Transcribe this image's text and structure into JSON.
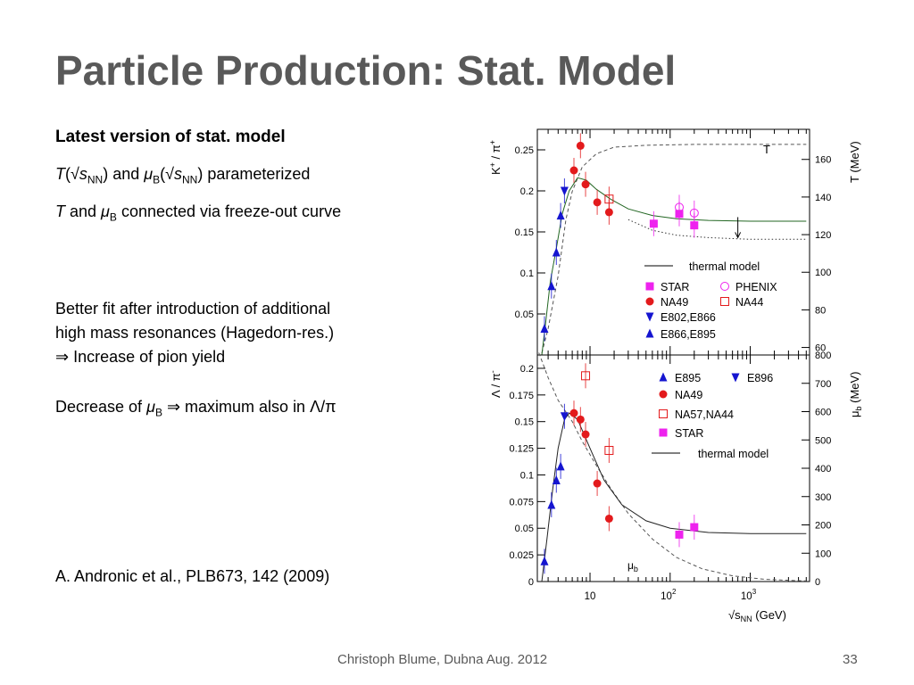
{
  "slide": {
    "title": "Particle Production: Stat. Model",
    "subtitle": "Latest version of stat. model",
    "line1": {
      "a": "T",
      "b": "(√",
      "c": "s",
      "d": "NN",
      "e": ") and ",
      "f": "μ",
      "g": "B",
      "h": "(√",
      "i": "s",
      "j": "NN",
      "k": ") parameterized"
    },
    "line2": {
      "a": "T",
      "b": " and ",
      "c": "μ",
      "d": "B",
      "e": " connected via freeze-out curve"
    },
    "para1": [
      "Better fit after introduction of additional",
      "high mass resonances (Hagedorn-res.)",
      "⇒ Increase of pion yield"
    ],
    "para2": {
      "a": "Decrease of ",
      "b": "μ",
      "c": "B",
      "d": " ⇒ maximum also in Λ/π"
    },
    "reference": "A. Andronic et al., PLB673, 142 (2009)",
    "footer": "Christoph Blume, Dubna Aug. 2012",
    "page_number": "33"
  },
  "chart_data": [
    {
      "type": "scatter",
      "x_scale": "log",
      "xlim": [
        2.2,
        5500
      ],
      "ylim": [
        0,
        0.275
      ],
      "y_right_lim": [
        56,
        176
      ],
      "ylabel_main": "K",
      "ylabel_sup1": "+",
      "ylabel_mid": " / π",
      "ylabel_sup2": "+",
      "ylabel_right": "T (MeV)",
      "yticks": [
        0.05,
        0.1,
        0.15,
        0.2,
        0.25
      ],
      "ytick_labels": [
        "0.05",
        "0.1",
        "0.15",
        "0.2",
        "0.25"
      ],
      "y_right_ticks": [
        60,
        80,
        100,
        120,
        140,
        160
      ],
      "y_right_tick_labels": [
        "60",
        "80",
        "100",
        "120",
        "140",
        "160"
      ],
      "curve_label": "T",
      "legend": [
        {
          "name": "thermal model",
          "marker": "line",
          "color": "#000000"
        },
        {
          "name": "STAR",
          "marker": "square",
          "color": "#ee22ee"
        },
        {
          "name": "PHENIX",
          "marker": "circle-open",
          "color": "#ee22ee"
        },
        {
          "name": "NA49",
          "marker": "circle",
          "color": "#e31a1c"
        },
        {
          "name": "NA44",
          "marker": "square-open",
          "color": "#e31a1c"
        },
        {
          "name": "E802,E866",
          "marker": "triangle-down",
          "color": "#1515d0"
        },
        {
          "name": "E866,E895",
          "marker": "triangle-up",
          "color": "#1515d0"
        }
      ],
      "series": [
        {
          "name": "E866,E895",
          "marker": "triangle-up",
          "color": "#1515d0",
          "points": [
            [
              2.7,
              0.032
            ],
            [
              3.3,
              0.084
            ],
            [
              3.8,
              0.125
            ],
            [
              4.3,
              0.17
            ]
          ]
        },
        {
          "name": "E802,E866",
          "marker": "triangle-down",
          "color": "#1515d0",
          "points": [
            [
              4.8,
              0.2
            ]
          ]
        },
        {
          "name": "NA49",
          "marker": "circle",
          "color": "#e31a1c",
          "points": [
            [
              6.3,
              0.225
            ],
            [
              7.6,
              0.255
            ],
            [
              8.8,
              0.208
            ],
            [
              12.3,
              0.186
            ],
            [
              17.3,
              0.174
            ]
          ]
        },
        {
          "name": "NA44",
          "marker": "square-open",
          "color": "#e31a1c",
          "points": [
            [
              17.3,
              0.19
            ]
          ]
        },
        {
          "name": "STAR",
          "marker": "square",
          "color": "#ee22ee",
          "points": [
            [
              62.4,
              0.16
            ],
            [
              130,
              0.172
            ],
            [
              200,
              0.158
            ]
          ]
        },
        {
          "name": "PHENIX",
          "marker": "circle-open",
          "color": "#ee22ee",
          "points": [
            [
              130,
              0.18
            ],
            [
              200,
              0.173
            ]
          ]
        }
      ],
      "thermal_curve": [
        [
          2.5,
          0.0
        ],
        [
          2.8,
          0.04
        ],
        [
          3.2,
          0.09
        ],
        [
          3.8,
          0.13
        ],
        [
          4.5,
          0.172
        ],
        [
          5.5,
          0.2
        ],
        [
          7,
          0.216
        ],
        [
          9,
          0.213
        ],
        [
          12,
          0.202
        ],
        [
          18,
          0.19
        ],
        [
          30,
          0.178
        ],
        [
          60,
          0.17
        ],
        [
          120,
          0.166
        ],
        [
          300,
          0.164
        ],
        [
          1000,
          0.163
        ],
        [
          5000,
          0.163
        ]
      ],
      "T_curve": [
        [
          2.5,
          57
        ],
        [
          3,
          70
        ],
        [
          4,
          98
        ],
        [
          5,
          128
        ],
        [
          6,
          143
        ],
        [
          8,
          156
        ],
        [
          12,
          163
        ],
        [
          20,
          166.5
        ],
        [
          50,
          167.5
        ],
        [
          200,
          168
        ],
        [
          5000,
          168
        ]
      ],
      "high_mass_curve": [
        [
          30,
          0.165
        ],
        [
          60,
          0.152
        ],
        [
          120,
          0.146
        ],
        [
          300,
          0.143
        ],
        [
          1000,
          0.141
        ],
        [
          5000,
          0.141
        ]
      ],
      "arrow": {
        "x": 700,
        "from": 0.168,
        "to": 0.143
      }
    },
    {
      "type": "scatter",
      "x_scale": "log",
      "xlim": [
        2.2,
        5500
      ],
      "ylim": [
        0,
        0.2125
      ],
      "y_right_lim": [
        0,
        800
      ],
      "ylabel_main": "Λ / π",
      "ylabel_sup": "-",
      "ylabel_right_main": "μ",
      "ylabel_right_sub": "b",
      "ylabel_right_rest": " (MeV)",
      "xlabel_main": "√s",
      "xlabel_sub": "NN",
      "xlabel_rest": " (GeV)",
      "yticks": [
        0.025,
        0.05,
        0.075,
        0.1,
        0.125,
        0.15,
        0.175,
        0.2
      ],
      "ytick_labels": [
        "0.025",
        "0.05",
        "0.075",
        "0.1",
        "0.125",
        "0.15",
        "0.175",
        "0.2"
      ],
      "y_right_ticks": [
        0,
        100,
        200,
        300,
        400,
        500,
        600,
        700,
        800
      ],
      "y_right_tick_labels": [
        "0",
        "100",
        "200",
        "300",
        "400",
        "500",
        "600",
        "700",
        "800"
      ],
      "xticks": [
        10,
        100,
        1000
      ],
      "xtick_base": [
        "10",
        "10",
        "10"
      ],
      "xtick_exp": [
        "",
        "2",
        "3"
      ],
      "y_left_zero": "0",
      "curve_label_main": "μ",
      "curve_label_sub": "b",
      "legend": [
        {
          "name": "E895",
          "marker": "triangle-up",
          "color": "#1515d0"
        },
        {
          "name": "E896",
          "marker": "triangle-down",
          "color": "#1515d0"
        },
        {
          "name": "NA49",
          "marker": "circle",
          "color": "#e31a1c"
        },
        {
          "name": "NA57,NA44",
          "marker": "square-open",
          "color": "#e31a1c"
        },
        {
          "name": "STAR",
          "marker": "square",
          "color": "#ee22ee"
        },
        {
          "name": "thermal model",
          "marker": "line",
          "color": "#000000"
        }
      ],
      "series": [
        {
          "name": "E895",
          "marker": "triangle-up",
          "color": "#1515d0",
          "points": [
            [
              2.7,
              0.019
            ],
            [
              3.3,
              0.072
            ],
            [
              3.8,
              0.095
            ],
            [
              4.3,
              0.108
            ]
          ]
        },
        {
          "name": "E896",
          "marker": "triangle-down",
          "color": "#1515d0",
          "points": [
            [
              4.8,
              0.155
            ]
          ]
        },
        {
          "name": "NA49",
          "marker": "circle",
          "color": "#e31a1c",
          "points": [
            [
              6.3,
              0.158
            ],
            [
              7.6,
              0.152
            ],
            [
              8.8,
              0.138
            ],
            [
              12.3,
              0.092
            ],
            [
              17.3,
              0.059
            ]
          ]
        },
        {
          "name": "NA57,NA44",
          "marker": "square-open",
          "color": "#e31a1c",
          "points": [
            [
              8.8,
              0.193
            ],
            [
              17.3,
              0.123
            ]
          ]
        },
        {
          "name": "STAR",
          "marker": "square",
          "color": "#ee22ee",
          "points": [
            [
              130,
              0.044
            ],
            [
              200,
              0.051
            ]
          ]
        }
      ],
      "thermal_curve": [
        [
          2.5,
          0.0
        ],
        [
          2.9,
          0.04
        ],
        [
          3.4,
          0.085
        ],
        [
          4,
          0.125
        ],
        [
          4.8,
          0.152
        ],
        [
          5.5,
          0.158
        ],
        [
          7,
          0.152
        ],
        [
          10,
          0.125
        ],
        [
          15,
          0.095
        ],
        [
          25,
          0.072
        ],
        [
          50,
          0.057
        ],
        [
          100,
          0.05
        ],
        [
          300,
          0.046
        ],
        [
          1000,
          0.045
        ],
        [
          5000,
          0.045
        ]
      ],
      "mu_curve": [
        [
          2.3,
          808
        ],
        [
          3,
          720
        ],
        [
          4,
          640
        ],
        [
          6,
          565
        ],
        [
          8,
          495
        ],
        [
          12,
          410
        ],
        [
          18,
          330
        ],
        [
          30,
          240
        ],
        [
          60,
          150
        ],
        [
          120,
          85
        ],
        [
          250,
          45
        ],
        [
          600,
          20
        ],
        [
          1500,
          8
        ],
        [
          5000,
          2
        ]
      ]
    }
  ]
}
